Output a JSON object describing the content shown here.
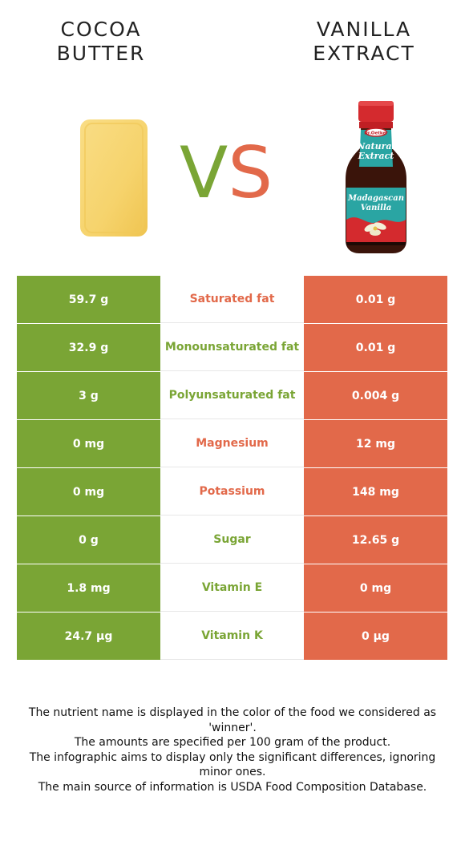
{
  "header": {
    "left_title_line1": "COCOA",
    "left_title_line2": "BUTTER",
    "right_title_line1": "VANILLA",
    "right_title_line2": "EXTRACT",
    "vs_v": "V",
    "vs_s": "S"
  },
  "colors": {
    "left_food": "#7aa535",
    "right_food": "#e2694a"
  },
  "bottle_label": {
    "brand": "Dr.Oetker",
    "line1": "Natural",
    "line2": "Extract",
    "line3": "Madagascan",
    "line4": "Vanilla"
  },
  "rows": [
    {
      "left": "59.7 g",
      "nutrient": "Saturated fat",
      "right": "0.01 g",
      "winner": "right"
    },
    {
      "left": "32.9 g",
      "nutrient": "Monounsaturated fat",
      "right": "0.01 g",
      "winner": "left"
    },
    {
      "left": "3 g",
      "nutrient": "Polyunsaturated fat",
      "right": "0.004 g",
      "winner": "left"
    },
    {
      "left": "0 mg",
      "nutrient": "Magnesium",
      "right": "12 mg",
      "winner": "right"
    },
    {
      "left": "0 mg",
      "nutrient": "Potassium",
      "right": "148 mg",
      "winner": "right"
    },
    {
      "left": "0 g",
      "nutrient": "Sugar",
      "right": "12.65 g",
      "winner": "left"
    },
    {
      "left": "1.8 mg",
      "nutrient": "Vitamin E",
      "right": "0 mg",
      "winner": "left"
    },
    {
      "left": "24.7 µg",
      "nutrient": "Vitamin K",
      "right": "0 µg",
      "winner": "left"
    }
  ],
  "footer": {
    "line1": "The nutrient name is displayed in the color of the food we considered as 'winner'.",
    "line2": "The amounts are specified per 100 gram of the product.",
    "line3": "The infographic aims to display only the significant differences, ignoring minor ones.",
    "line4": "The main source of information is USDA Food Composition Database."
  }
}
